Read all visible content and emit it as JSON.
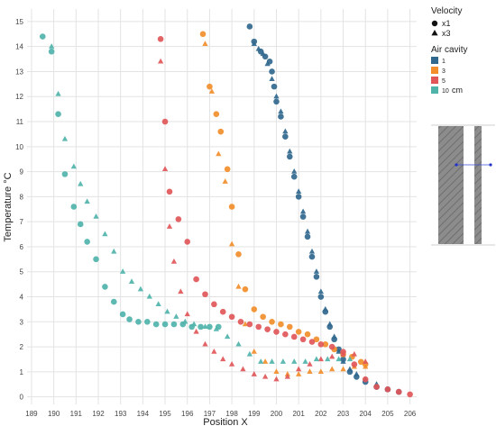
{
  "chart_data": {
    "type": "scatter",
    "xlabel": "Position X",
    "ylabel": "Temperature °C",
    "xlim": [
      188.8,
      206.3
    ],
    "ylim": [
      -0.3,
      15.5
    ],
    "xticks": [
      189,
      190,
      191,
      192,
      193,
      194,
      195,
      196,
      197,
      198,
      199,
      200,
      201,
      202,
      203,
      204,
      205,
      206
    ],
    "yticks": [
      0,
      1,
      2,
      3,
      4,
      5,
      6,
      7,
      8,
      9,
      10,
      11,
      12,
      13,
      14,
      15
    ],
    "grid": true,
    "legend_placement": "right",
    "legend": {
      "velocity_title": "Velocity",
      "velocity_items": [
        {
          "marker": "circle",
          "label": "x1"
        },
        {
          "marker": "triangle",
          "label": "x3"
        }
      ],
      "cavity_title": "Air cavity",
      "cavity_items": [
        {
          "label": "1",
          "color": "#31688e"
        },
        {
          "label": "3",
          "color": "#f28e2b"
        },
        {
          "label": "5",
          "color": "#e15759"
        },
        {
          "label": "10",
          "unit": "cm",
          "color": "#4fb3aa"
        }
      ]
    },
    "series": [
      {
        "cavity": "1",
        "velocity": "x1",
        "color": "#31688e",
        "marker": "circle",
        "x": [
          198.8,
          199.0,
          199.3,
          199.5,
          199.7,
          199.8,
          199.9,
          200.0,
          200.2,
          200.4,
          200.6,
          200.8,
          201.0,
          201.2,
          201.4,
          201.6,
          201.8,
          202.0,
          202.2,
          202.4,
          202.6,
          202.8,
          203.0,
          203.3,
          203.6,
          204.0,
          204.5,
          205.0,
          205.5
        ],
        "y": [
          14.8,
          14.2,
          13.8,
          13.6,
          13.4,
          13.0,
          12.4,
          11.8,
          11.2,
          10.4,
          9.6,
          8.8,
          8.0,
          7.2,
          6.4,
          5.6,
          4.8,
          4.0,
          3.4,
          2.8,
          2.3,
          1.9,
          1.5,
          1.0,
          0.8,
          0.6,
          0.4,
          0.3,
          0.2
        ]
      },
      {
        "cavity": "1",
        "velocity": "x3",
        "color": "#31688e",
        "marker": "triangle",
        "x": [
          199.0,
          199.2,
          199.4,
          199.6,
          199.8,
          200.0,
          200.2,
          200.4,
          200.6,
          200.8,
          201.0,
          201.2,
          201.4,
          201.6,
          201.8,
          202.0,
          202.2,
          202.4,
          202.6,
          202.8,
          203.0,
          203.3,
          203.6,
          204.0,
          204.5,
          205.0
        ],
        "y": [
          14.1,
          13.9,
          13.7,
          13.3,
          12.7,
          12.0,
          11.4,
          10.6,
          9.8,
          9.0,
          8.2,
          7.4,
          6.6,
          5.8,
          5.0,
          4.2,
          3.5,
          2.9,
          2.4,
          1.8,
          1.4,
          1.1,
          0.9,
          0.7,
          0.5,
          0.3
        ]
      },
      {
        "cavity": "3",
        "velocity": "x1",
        "color": "#f28e2b",
        "marker": "circle",
        "x": [
          196.7,
          197.0,
          197.3,
          197.5,
          197.8,
          198.0,
          198.3,
          198.6,
          199.0,
          199.4,
          199.8,
          200.2,
          200.6,
          201.0,
          201.4,
          201.8,
          202.2,
          202.6,
          203.0,
          203.4,
          203.8,
          204.0
        ],
        "y": [
          14.5,
          12.4,
          11.3,
          10.6,
          9.1,
          7.6,
          5.7,
          4.3,
          3.5,
          3.2,
          3.0,
          2.9,
          2.8,
          2.6,
          2.5,
          2.3,
          2.1,
          1.9,
          1.7,
          1.6,
          1.4,
          1.3
        ]
      },
      {
        "cavity": "3",
        "velocity": "x3",
        "color": "#f28e2b",
        "marker": "triangle",
        "x": [
          196.8,
          197.1,
          197.4,
          197.7,
          198.0,
          198.3,
          198.6,
          199.0,
          199.5,
          200.0,
          200.5,
          201.0,
          201.5,
          202.0,
          202.5,
          203.0,
          203.5,
          204.0
        ],
        "y": [
          14.1,
          12.2,
          9.7,
          8.6,
          6.1,
          4.4,
          2.9,
          1.8,
          1.4,
          1.0,
          0.9,
          0.9,
          1.0,
          1.0,
          1.1,
          1.1,
          1.2,
          1.2
        ]
      },
      {
        "cavity": "5",
        "velocity": "x1",
        "color": "#e15759",
        "marker": "circle",
        "x": [
          194.8,
          195.0,
          195.2,
          195.6,
          196.0,
          196.4,
          196.8,
          197.2,
          197.6,
          198.0,
          198.4,
          198.8,
          199.2,
          199.6,
          200.0,
          200.4,
          200.8,
          201.2,
          201.6,
          202.0,
          202.5,
          203.0,
          203.5,
          204.0,
          204.5,
          205.0,
          205.5,
          206.0
        ],
        "y": [
          14.3,
          11.0,
          8.2,
          7.1,
          6.2,
          4.7,
          4.1,
          3.7,
          3.4,
          3.2,
          3.0,
          2.9,
          2.8,
          2.7,
          2.6,
          2.5,
          2.4,
          2.3,
          2.2,
          2.1,
          2.0,
          1.8,
          1.3,
          0.7,
          0.4,
          0.3,
          0.2,
          0.1
        ]
      },
      {
        "cavity": "5",
        "velocity": "x3",
        "color": "#e15759",
        "marker": "triangle",
        "x": [
          194.8,
          195.0,
          195.2,
          195.4,
          195.7,
          196.0,
          196.4,
          196.8,
          197.2,
          197.6,
          198.0,
          198.5,
          199.0,
          199.5,
          200.0,
          200.5,
          201.0,
          201.5,
          202.0,
          202.5,
          203.0,
          203.5,
          204.0
        ],
        "y": [
          13.4,
          9.1,
          6.8,
          5.4,
          4.2,
          3.3,
          2.6,
          2.1,
          1.8,
          1.5,
          1.3,
          1.1,
          0.9,
          0.8,
          0.7,
          0.8,
          1.1,
          1.3,
          1.5,
          1.6,
          1.7,
          1.7,
          1.4
        ]
      },
      {
        "cavity": "10",
        "velocity": "x1",
        "color": "#4fb3aa",
        "marker": "circle",
        "x": [
          189.5,
          189.9,
          190.2,
          190.5,
          190.9,
          191.2,
          191.5,
          191.9,
          192.3,
          192.7,
          193.1,
          193.4,
          193.8,
          194.2,
          194.6,
          195.0,
          195.4,
          195.8,
          196.2,
          196.6,
          197.0,
          197.4
        ],
        "y": [
          14.4,
          13.8,
          11.3,
          8.9,
          7.6,
          6.9,
          6.2,
          5.5,
          4.4,
          3.8,
          3.3,
          3.1,
          3.0,
          3.0,
          2.9,
          2.9,
          2.9,
          2.9,
          2.8,
          2.8,
          2.8,
          2.8
        ]
      },
      {
        "cavity": "10",
        "velocity": "x3",
        "color": "#4fb3aa",
        "marker": "triangle",
        "x": [
          189.9,
          190.2,
          190.5,
          190.9,
          191.2,
          191.5,
          191.9,
          192.3,
          192.7,
          193.1,
          193.5,
          193.9,
          194.3,
          194.7,
          195.1,
          195.5,
          195.9,
          196.3,
          196.8,
          197.3,
          197.8,
          198.3,
          198.8,
          199.3,
          199.8,
          200.3,
          200.8,
          201.3,
          201.8,
          202.3,
          202.8,
          203.3
        ],
        "y": [
          14.0,
          12.1,
          10.3,
          9.2,
          8.5,
          7.8,
          7.2,
          6.5,
          5.8,
          5.0,
          4.6,
          4.3,
          4.0,
          3.7,
          3.4,
          3.2,
          3.0,
          2.9,
          2.8,
          2.7,
          2.4,
          2.1,
          1.7,
          1.4,
          1.4,
          1.4,
          1.4,
          1.4,
          1.5,
          1.5,
          1.5,
          1.5
        ]
      }
    ]
  }
}
